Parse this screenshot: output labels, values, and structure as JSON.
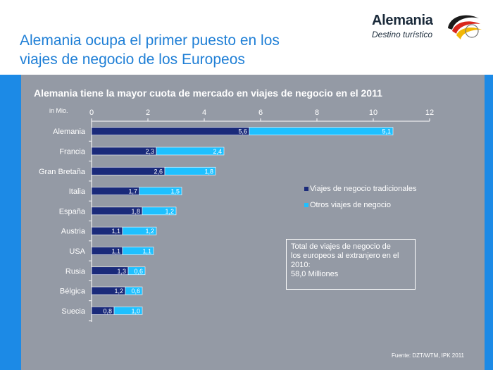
{
  "slide": {
    "title_line1": "Alemania ocupa el primer puesto en los",
    "title_line2": "viajes de negocio de los Europeos",
    "brand_name": "Alemania",
    "brand_tagline": "Destino turístico",
    "source": "Fuente: DZT/WTM, IPK 2011"
  },
  "colors": {
    "accent_blue": "#1c8ae6",
    "title_blue": "#1f7fd6",
    "panel_gray": "#949aa5",
    "series_traditional": "#1a2a7a",
    "series_other": "#1ec0ff"
  },
  "chart_data": {
    "type": "bar",
    "orientation": "horizontal",
    "stacked": true,
    "title": "Alemania tiene la mayor cuota de mercado en viajes de negocio  en el 2011",
    "unit_label": "in Mio.",
    "xlim": [
      0,
      12
    ],
    "x_ticks": [
      0,
      2,
      4,
      6,
      8,
      10,
      12
    ],
    "categories": [
      "Alemania",
      "Francia",
      "Gran Bretaña",
      "Italia",
      "España",
      "Austria",
      "USA",
      "Rusia",
      "Bélgica",
      "Suecia"
    ],
    "series": [
      {
        "name": "Viajes de negocio tradicionales",
        "color": "#1a2a7a",
        "values": [
          5.6,
          2.3,
          2.6,
          1.7,
          1.8,
          1.1,
          1.1,
          1.3,
          1.2,
          0.8
        ],
        "labels": [
          "5,6",
          "2,3",
          "2,6",
          "1,7",
          "1,8",
          "1,1",
          "1,1",
          "1,3",
          "1,2",
          "0,8"
        ]
      },
      {
        "name": "Otros viajes de negocio",
        "color": "#1ec0ff",
        "values": [
          5.1,
          2.4,
          1.8,
          1.5,
          1.2,
          1.2,
          1.1,
          0.6,
          0.6,
          1.0
        ],
        "labels": [
          "5,1",
          "2,4",
          "1,8",
          "1,5",
          "1,2",
          "1,2",
          "1,1",
          "0,6",
          "0,6",
          "1,0"
        ]
      }
    ],
    "legend": {
      "entries": [
        "Viajes de negocio tradicionales",
        "Otros viajes de negocio"
      ],
      "placement": "right"
    },
    "annotation": {
      "line1": "Total de viajes de negocio de",
      "line2": "los europeos al extranjero en el",
      "line3": "2010:",
      "line4": "58,0 Milliones"
    },
    "grid": false
  }
}
